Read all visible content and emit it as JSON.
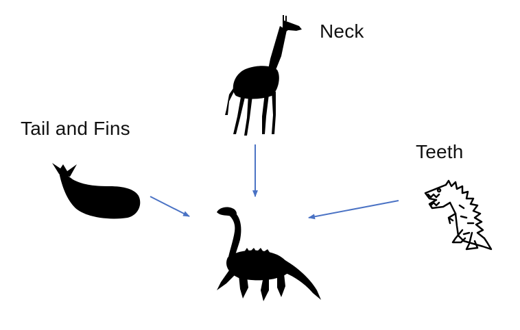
{
  "diagram": {
    "labels": {
      "neck": "Neck",
      "tail_and_fins": "Tail and Fins",
      "teeth": "Teeth"
    },
    "sources": [
      {
        "icon": "giraffe-icon",
        "trait": "Neck"
      },
      {
        "icon": "whale-icon",
        "trait": "Tail and Fins"
      },
      {
        "icon": "dinosaur-icon",
        "trait": "Teeth"
      }
    ],
    "target": {
      "icon": "plesiosaur-icon"
    },
    "colors": {
      "arrow": "#4a72c4",
      "silhouette": "#000000",
      "background": "#ffffff"
    }
  }
}
